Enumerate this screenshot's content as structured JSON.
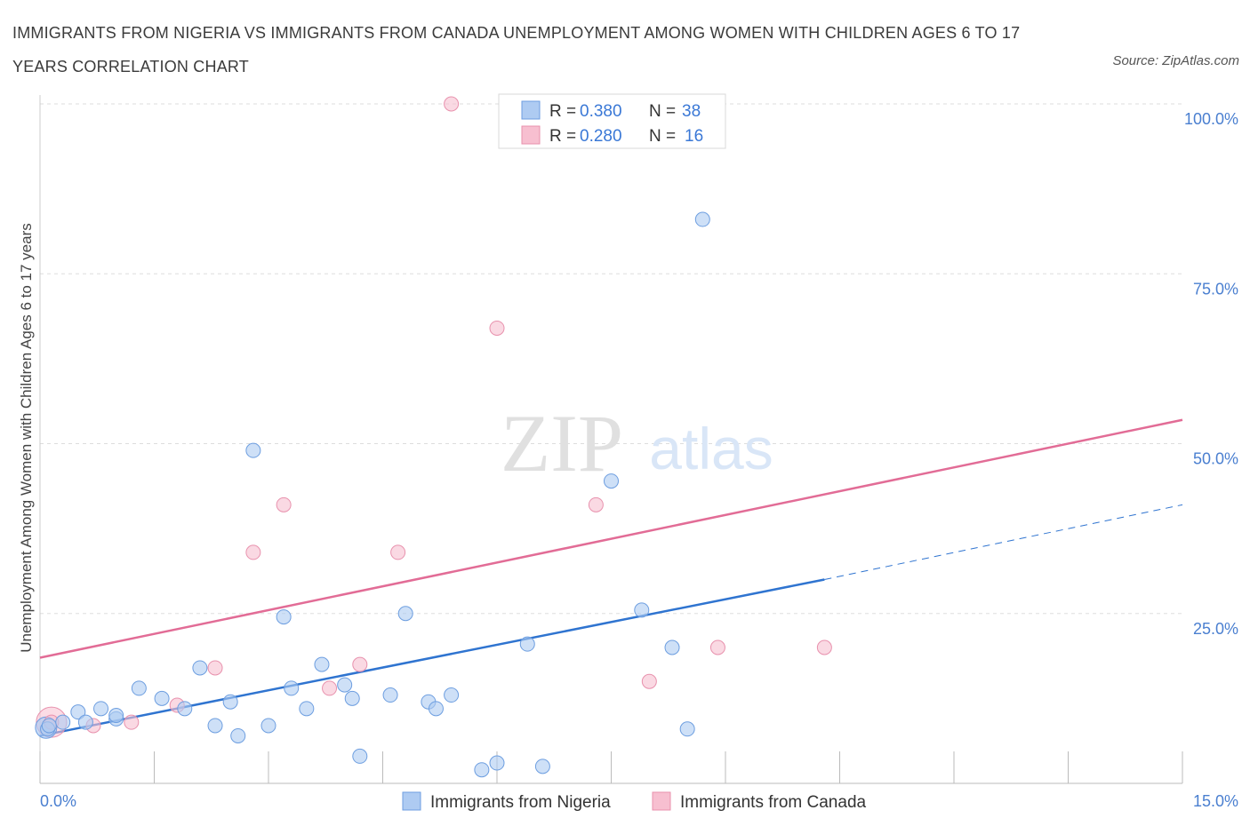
{
  "title": "IMMIGRANTS FROM NIGERIA VS IMMIGRANTS FROM CANADA UNEMPLOYMENT AMONG WOMEN WITH CHILDREN AGES 6 TO 17 YEARS CORRELATION CHART",
  "source": "Source: ZipAtlas.com",
  "watermark": {
    "zip": "ZIP",
    "atlas": "atlas"
  },
  "colors": {
    "nigeria_fill": "#aecbf2",
    "nigeria_stroke": "#6d9ee0",
    "nigeria_line": "#2f74d0",
    "canada_fill": "#f7bfd0",
    "canada_stroke": "#e891ad",
    "canada_line": "#e26c96",
    "grid": "#dddddd",
    "tick_label": "#4a7fd0"
  },
  "legend": {
    "rows": [
      {
        "r_label": "R = ",
        "r_value": "0.380",
        "n_label": "N = ",
        "n_value": "38"
      },
      {
        "r_label": "R = ",
        "r_value": "0.280",
        "n_label": "N = ",
        "n_value": "16"
      }
    ]
  },
  "chart_data": {
    "type": "scatter",
    "title": "IMMIGRANTS FROM NIGERIA VS IMMIGRANTS FROM CANADA UNEMPLOYMENT AMONG WOMEN WITH CHILDREN AGES 6 TO 17 YEARS CORRELATION CHART",
    "xlabel": "",
    "ylabel": "Unemployment Among Women with Children Ages 6 to 17 years",
    "xlim": [
      0,
      15
    ],
    "ylim": [
      0,
      100
    ],
    "x_tick_labels": [
      "0.0%",
      "15.0%"
    ],
    "y_ticks": [
      25,
      50,
      75,
      100
    ],
    "y_tick_labels": [
      "25.0%",
      "50.0%",
      "75.0%",
      "100.0%"
    ],
    "grid": true,
    "legend_position": "top-center",
    "series": [
      {
        "name": "Immigrants from Nigeria",
        "r": 0.38,
        "n": 38,
        "trend": {
          "x0": 0,
          "y0": 7.0,
          "x1": 10.3,
          "y1": 30.0,
          "dashed_to_x": 15,
          "dashed_to_y": 41.0
        },
        "points": [
          [
            0.1,
            8.0
          ],
          [
            0.3,
            9.0
          ],
          [
            0.5,
            10.5
          ],
          [
            0.6,
            9.0
          ],
          [
            0.8,
            11.0
          ],
          [
            1.0,
            9.5
          ],
          [
            1.0,
            10.0
          ],
          [
            1.3,
            14.0
          ],
          [
            1.6,
            12.5
          ],
          [
            1.9,
            11.0
          ],
          [
            2.1,
            17.0
          ],
          [
            2.3,
            8.5
          ],
          [
            2.5,
            12.0
          ],
          [
            2.6,
            7.0
          ],
          [
            2.8,
            49.0
          ],
          [
            3.0,
            8.5
          ],
          [
            3.2,
            24.5
          ],
          [
            3.3,
            14.0
          ],
          [
            3.5,
            11.0
          ],
          [
            3.7,
            17.5
          ],
          [
            4.0,
            14.5
          ],
          [
            4.1,
            12.5
          ],
          [
            4.2,
            4.0
          ],
          [
            4.6,
            13.0
          ],
          [
            4.8,
            25.0
          ],
          [
            5.1,
            12.0
          ],
          [
            5.2,
            11.0
          ],
          [
            5.4,
            13.0
          ],
          [
            5.8,
            2.0
          ],
          [
            6.0,
            3.0
          ],
          [
            6.4,
            20.5
          ],
          [
            6.6,
            2.5
          ],
          [
            7.5,
            44.5
          ],
          [
            7.9,
            25.5
          ],
          [
            8.3,
            20.0
          ],
          [
            8.5,
            8.0
          ],
          [
            8.7,
            83.0
          ],
          [
            0.12,
            8.5
          ]
        ]
      },
      {
        "name": "Immigrants from Canada",
        "r": 0.28,
        "n": 16,
        "trend": {
          "x0": 0,
          "y0": 18.5,
          "x1": 15,
          "y1": 53.5
        },
        "points": [
          [
            0.15,
            9.0
          ],
          [
            0.7,
            8.5
          ],
          [
            1.2,
            9.0
          ],
          [
            1.8,
            11.5
          ],
          [
            2.3,
            17.0
          ],
          [
            2.8,
            34.0
          ],
          [
            3.2,
            41.0
          ],
          [
            3.8,
            14.0
          ],
          [
            4.2,
            17.5
          ],
          [
            4.7,
            34.0
          ],
          [
            5.4,
            100.0
          ],
          [
            6.0,
            67.0
          ],
          [
            7.3,
            41.0
          ],
          [
            8.0,
            15.0
          ],
          [
            8.9,
            20.0
          ],
          [
            10.3,
            20.0
          ]
        ]
      }
    ]
  }
}
